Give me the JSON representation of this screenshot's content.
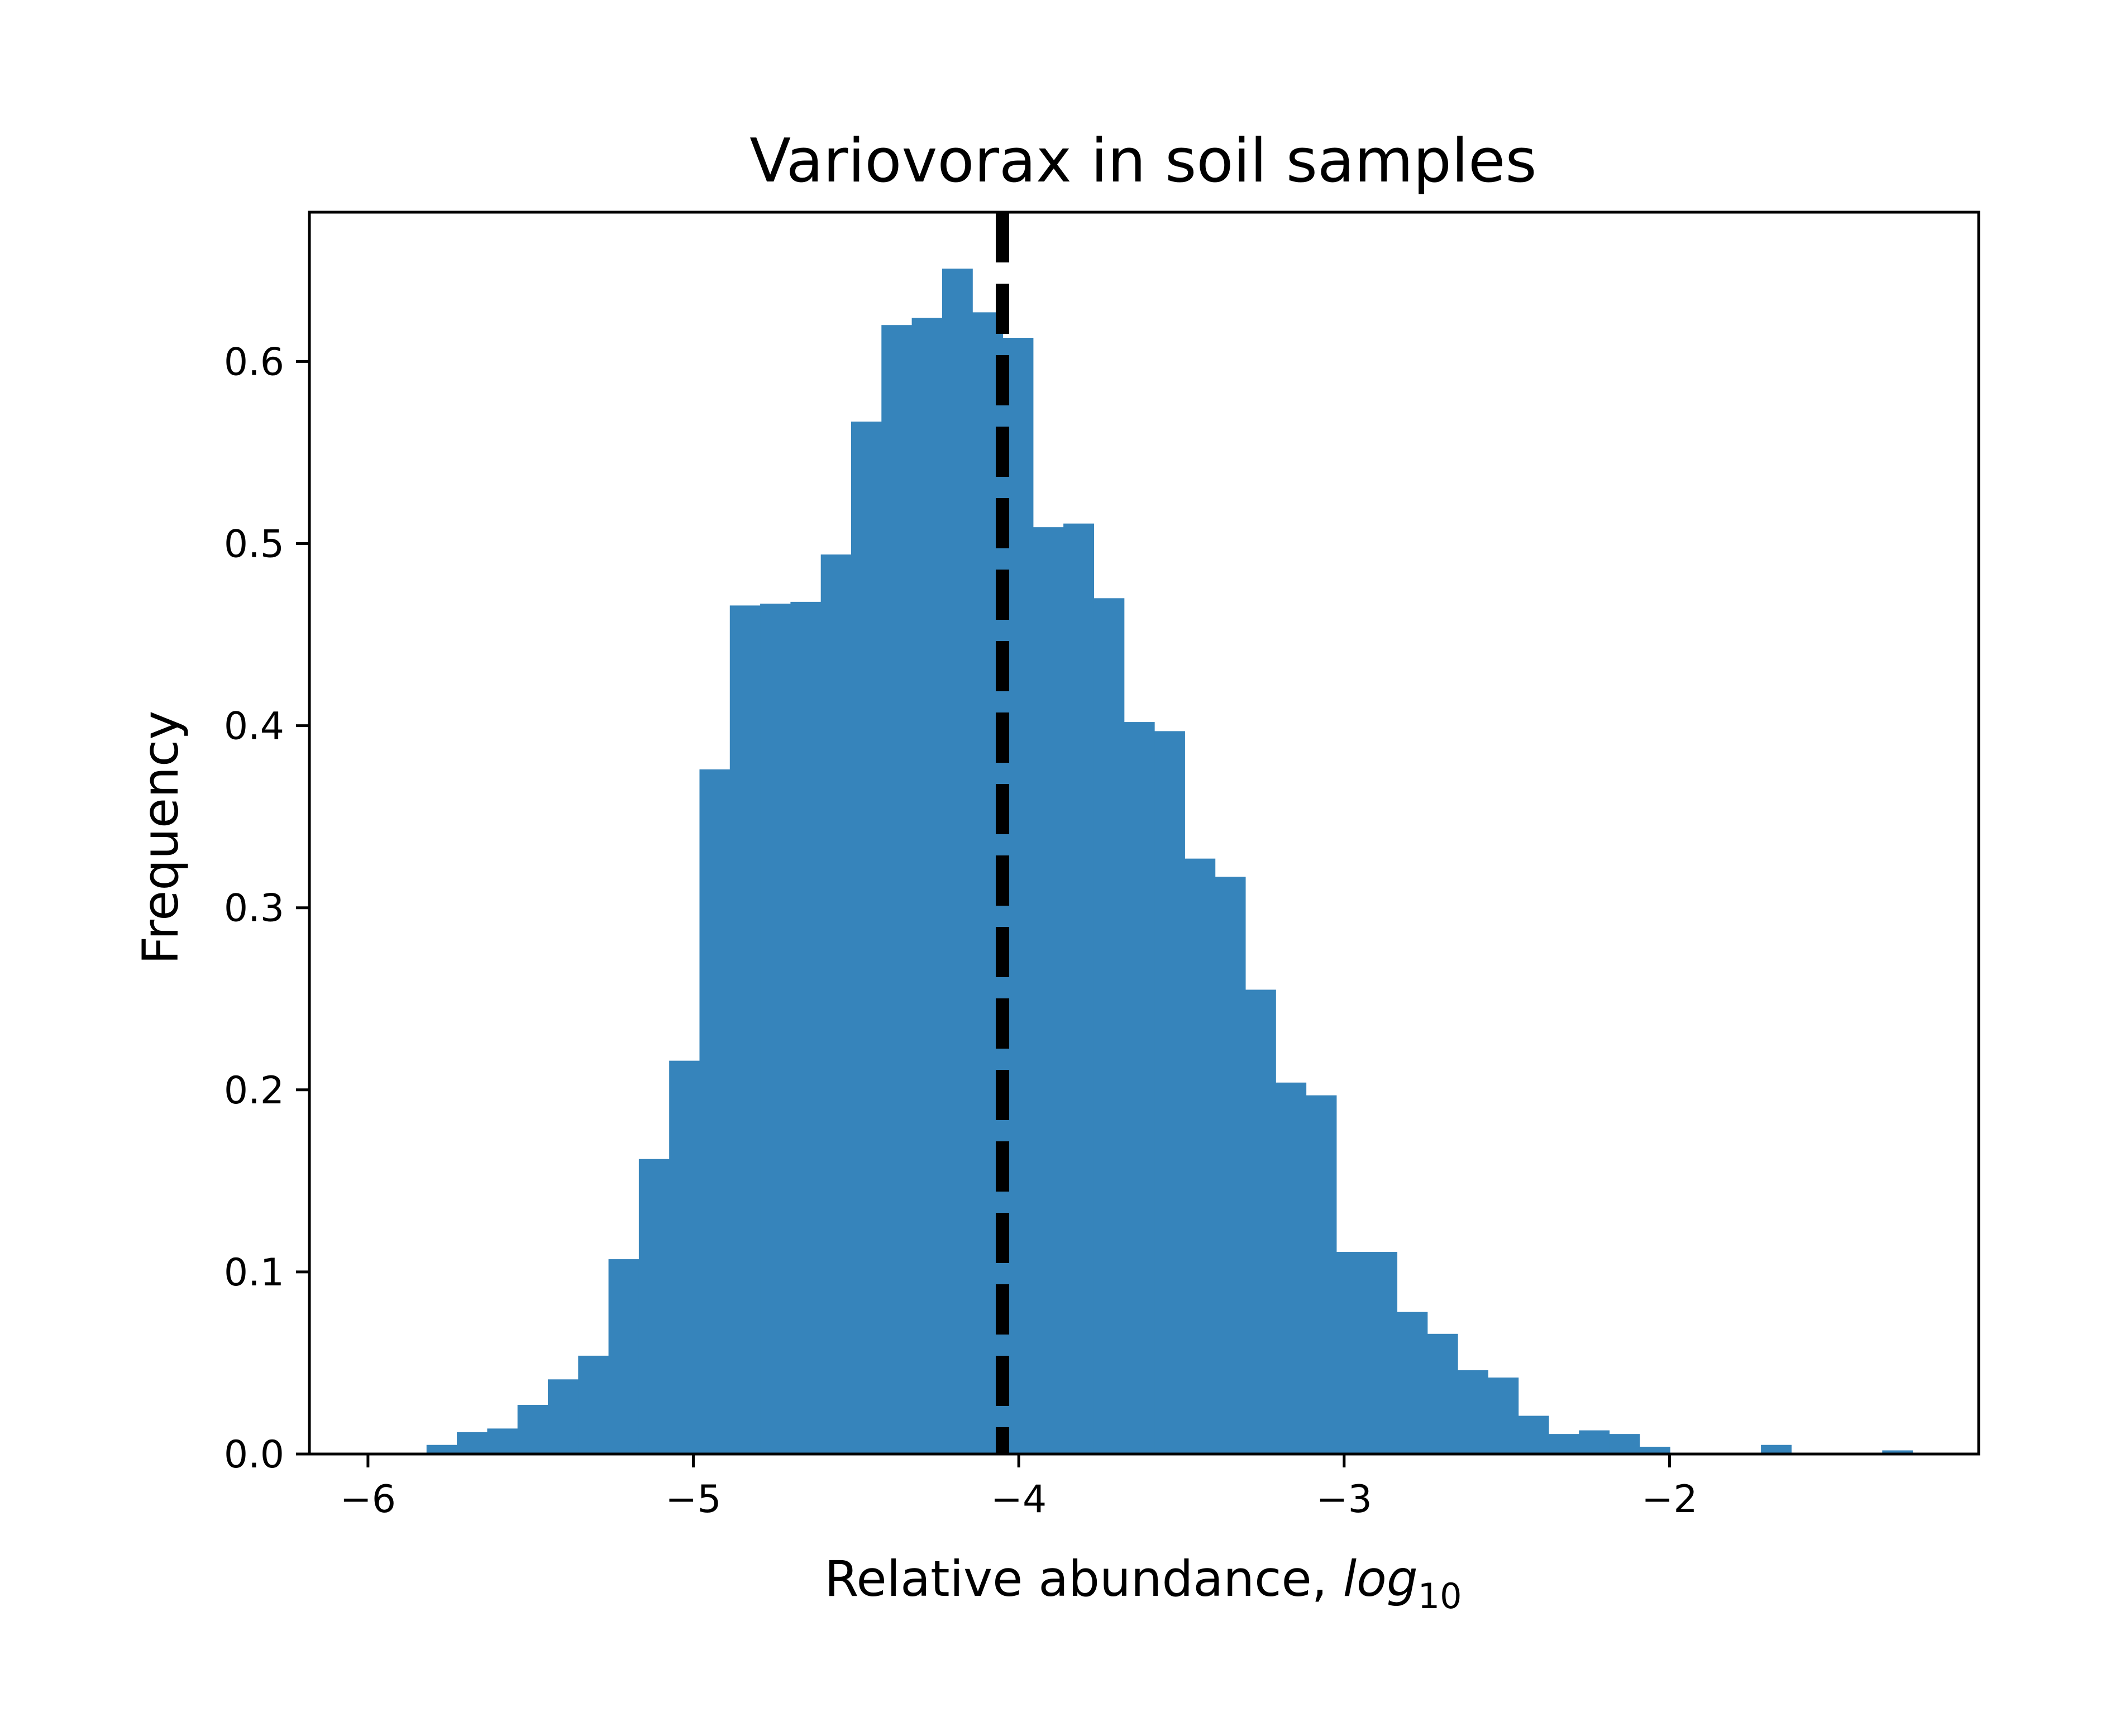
{
  "chart_data": {
    "type": "bar",
    "title": "Variovorax in soil samples",
    "xlabel": "Relative abundance, ",
    "xlabel_math_base": "log",
    "xlabel_math_sub": "10",
    "ylabel": "Frequency",
    "xlim": [
      -6.18,
      -1.05
    ],
    "ylim": [
      0,
      0.682
    ],
    "xticks": [
      -6,
      -5,
      -4,
      -3,
      -2
    ],
    "xtick_labels": [
      "−6",
      "−5",
      "−4",
      "−3",
      "−2"
    ],
    "yticks": [
      0.0,
      0.1,
      0.2,
      0.3,
      0.4,
      0.5,
      0.6
    ],
    "ytick_labels": [
      "0.0",
      "0.1",
      "0.2",
      "0.3",
      "0.4",
      "0.5",
      "0.6"
    ],
    "grid": false,
    "bar_color": "#3684BB",
    "bin_start": -5.82,
    "bin_width": 0.0932,
    "values": [
      0.005,
      0.012,
      0.014,
      0.027,
      0.041,
      0.054,
      0.107,
      0.162,
      0.216,
      0.376,
      0.466,
      0.467,
      0.468,
      0.494,
      0.567,
      0.62,
      0.624,
      0.651,
      0.627,
      0.613,
      0.509,
      0.511,
      0.47,
      0.402,
      0.397,
      0.327,
      0.317,
      0.255,
      0.204,
      0.197,
      0.111,
      0.111,
      0.078,
      0.066,
      0.046,
      0.042,
      0.021,
      0.011,
      0.013,
      0.011,
      0.004,
      0.0,
      0.0,
      0.0,
      0.005,
      0.0,
      0.0,
      0.0,
      0.002
    ],
    "reference_line": {
      "x": -4.05,
      "style": "dashed",
      "color": "#000000"
    }
  }
}
